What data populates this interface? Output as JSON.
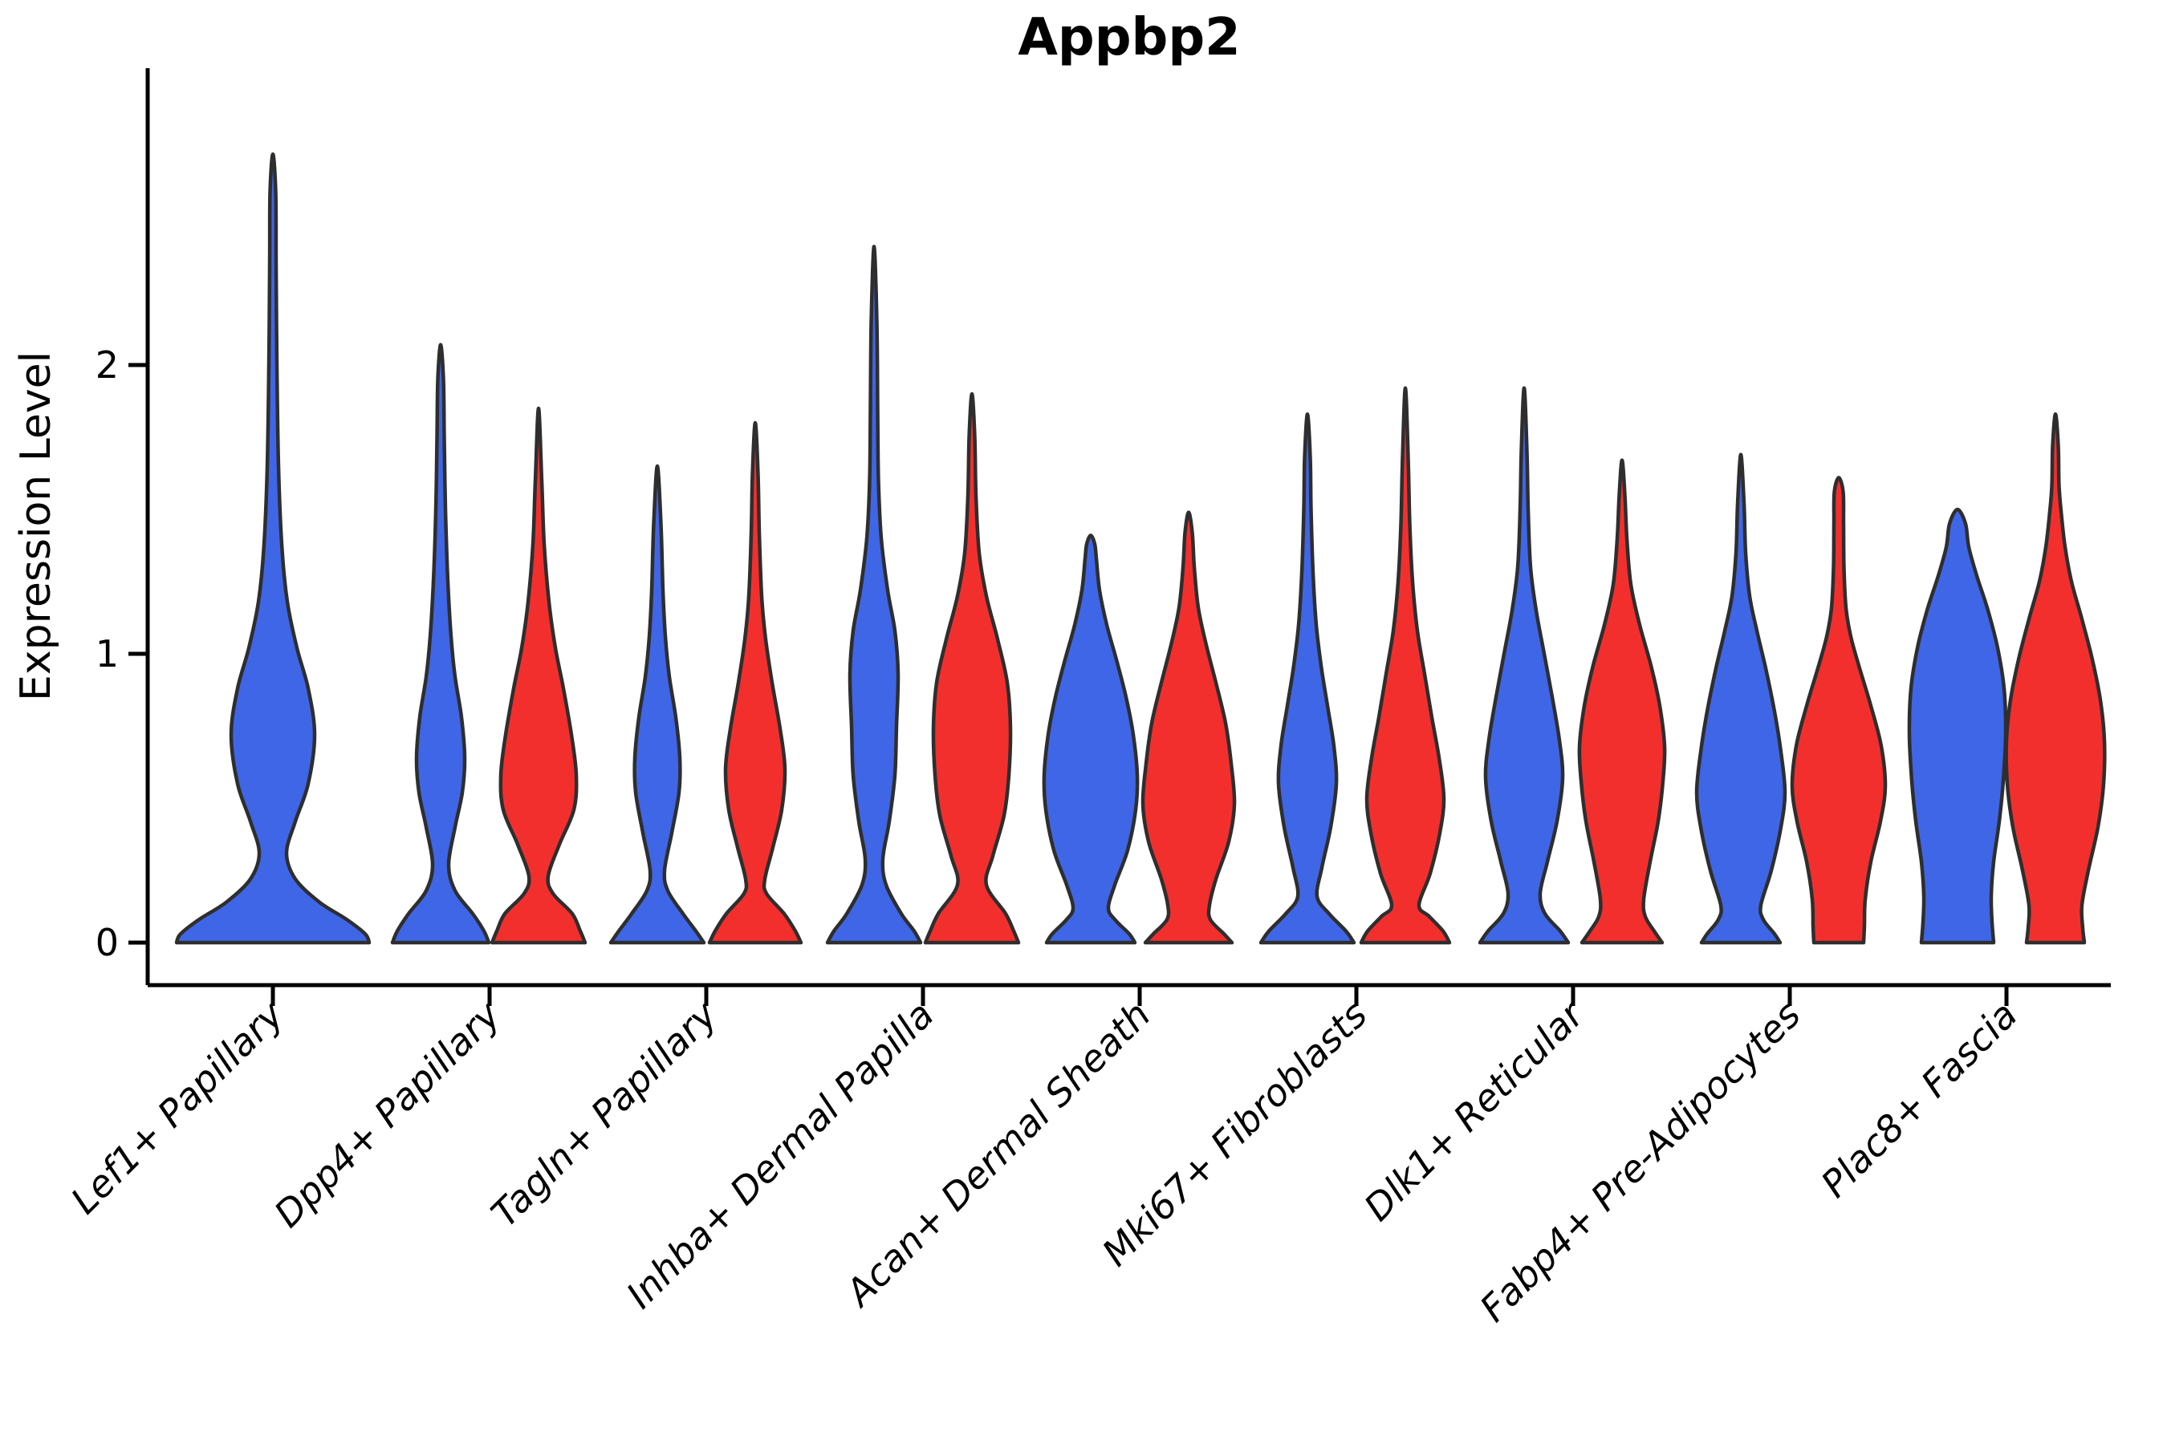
{
  "chart_data": {
    "type": "violin",
    "title": "Appbp2",
    "xlabel": "",
    "ylabel": "Expression Level",
    "yticks": [
      0,
      1,
      2
    ],
    "ylim": [
      0,
      3.0
    ],
    "grid": false,
    "legend": "none",
    "colors": {
      "group1": "#3F66E6",
      "group2": "#F32F2E",
      "outline": "#2E2E2E",
      "axis": "#000000",
      "background": "#FFFFFF"
    },
    "categories": [
      "Lef1+ Papillary",
      "Dpp4+ Papillary",
      "Tagln+ Papillary",
      "Inhba+ Dermal Papilla",
      "Acan+ Dermal Sheath",
      "Mki67+ Fibroblasts",
      "Dlk1+ Reticular",
      "Fabp4+ Pre-Adipocytes",
      "Plac8+ Fascia"
    ],
    "violins": [
      {
        "category_index": 0,
        "group": "group1",
        "max": 2.73,
        "profile": [
          [
            0,
            120
          ],
          [
            0.03,
            115
          ],
          [
            0.08,
            92
          ],
          [
            0.14,
            58
          ],
          [
            0.22,
            28
          ],
          [
            0.31,
            17
          ],
          [
            0.42,
            28
          ],
          [
            0.55,
            44
          ],
          [
            0.72,
            52
          ],
          [
            0.88,
            44
          ],
          [
            1.02,
            30
          ],
          [
            1.18,
            18
          ],
          [
            1.38,
            11
          ],
          [
            1.65,
            7
          ],
          [
            2.0,
            5
          ],
          [
            2.35,
            4
          ],
          [
            2.6,
            3.5
          ],
          [
            2.73,
            0
          ]
        ]
      },
      {
        "category_index": 1,
        "group": "group1",
        "max": 2.07,
        "profile": [
          [
            0,
            60
          ],
          [
            0.04,
            54
          ],
          [
            0.1,
            40
          ],
          [
            0.18,
            18
          ],
          [
            0.27,
            10
          ],
          [
            0.4,
            18
          ],
          [
            0.52,
            27
          ],
          [
            0.64,
            30
          ],
          [
            0.78,
            26
          ],
          [
            0.92,
            18
          ],
          [
            1.06,
            13
          ],
          [
            1.25,
            9
          ],
          [
            1.5,
            6
          ],
          [
            1.75,
            4.5
          ],
          [
            1.95,
            3.5
          ],
          [
            2.07,
            0
          ]
        ]
      },
      {
        "category_index": 1,
        "group": "group2",
        "max": 1.85,
        "profile": [
          [
            0,
            58
          ],
          [
            0.04,
            52
          ],
          [
            0.1,
            42
          ],
          [
            0.17,
            18
          ],
          [
            0.23,
            12
          ],
          [
            0.34,
            26
          ],
          [
            0.46,
            44
          ],
          [
            0.58,
            47
          ],
          [
            0.72,
            41
          ],
          [
            0.88,
            31
          ],
          [
            1.02,
            21
          ],
          [
            1.18,
            13
          ],
          [
            1.38,
            7
          ],
          [
            1.6,
            4
          ],
          [
            1.85,
            0
          ]
        ]
      },
      {
        "category_index": 2,
        "group": "group1",
        "max": 1.65,
        "profile": [
          [
            0,
            58
          ],
          [
            0.04,
            48
          ],
          [
            0.1,
            32
          ],
          [
            0.18,
            13
          ],
          [
            0.25,
            9
          ],
          [
            0.38,
            18
          ],
          [
            0.52,
            27
          ],
          [
            0.64,
            28
          ],
          [
            0.78,
            23
          ],
          [
            0.92,
            15
          ],
          [
            1.06,
            10
          ],
          [
            1.22,
            7
          ],
          [
            1.45,
            4.5
          ],
          [
            1.65,
            0
          ]
        ]
      },
      {
        "category_index": 2,
        "group": "group2",
        "max": 1.8,
        "profile": [
          [
            0,
            57
          ],
          [
            0.04,
            50
          ],
          [
            0.1,
            36
          ],
          [
            0.17,
            14
          ],
          [
            0.22,
            12
          ],
          [
            0.33,
            22
          ],
          [
            0.46,
            33
          ],
          [
            0.6,
            37
          ],
          [
            0.74,
            31
          ],
          [
            0.9,
            21
          ],
          [
            1.05,
            13
          ],
          [
            1.2,
            8
          ],
          [
            1.42,
            5
          ],
          [
            1.62,
            3.5
          ],
          [
            1.8,
            0
          ]
        ]
      },
      {
        "category_index": 3,
        "group": "group1",
        "max": 2.41,
        "profile": [
          [
            0,
            58
          ],
          [
            0.04,
            50
          ],
          [
            0.1,
            34
          ],
          [
            0.2,
            15
          ],
          [
            0.29,
            11
          ],
          [
            0.42,
            19
          ],
          [
            0.58,
            26
          ],
          [
            0.75,
            28
          ],
          [
            0.93,
            30
          ],
          [
            1.08,
            26
          ],
          [
            1.22,
            17
          ],
          [
            1.4,
            9
          ],
          [
            1.6,
            5.5
          ],
          [
            1.85,
            4.5
          ],
          [
            2.15,
            3.5
          ],
          [
            2.41,
            0
          ]
        ]
      },
      {
        "category_index": 3,
        "group": "group2",
        "max": 1.9,
        "profile": [
          [
            0,
            58
          ],
          [
            0.04,
            52
          ],
          [
            0.1,
            42
          ],
          [
            0.2,
            18
          ],
          [
            0.3,
            26
          ],
          [
            0.44,
            40
          ],
          [
            0.58,
            46
          ],
          [
            0.74,
            48
          ],
          [
            0.9,
            44
          ],
          [
            1.05,
            32
          ],
          [
            1.2,
            18
          ],
          [
            1.35,
            9
          ],
          [
            1.55,
            5
          ],
          [
            1.75,
            3.5
          ],
          [
            1.9,
            0
          ]
        ]
      },
      {
        "category_index": 4,
        "group": "group1",
        "max": 1.41,
        "profile": [
          [
            0,
            55
          ],
          [
            0.03,
            48
          ],
          [
            0.08,
            30
          ],
          [
            0.12,
            22
          ],
          [
            0.2,
            30
          ],
          [
            0.32,
            46
          ],
          [
            0.46,
            56
          ],
          [
            0.58,
            58
          ],
          [
            0.72,
            53
          ],
          [
            0.85,
            44
          ],
          [
            0.98,
            32
          ],
          [
            1.1,
            20
          ],
          [
            1.22,
            11
          ],
          [
            1.33,
            7
          ],
          [
            1.38,
            5
          ],
          [
            1.41,
            0
          ]
        ]
      },
      {
        "category_index": 4,
        "group": "group2",
        "max": 1.49,
        "profile": [
          [
            0,
            54
          ],
          [
            0.03,
            44
          ],
          [
            0.08,
            27
          ],
          [
            0.13,
            26
          ],
          [
            0.22,
            34
          ],
          [
            0.35,
            50
          ],
          [
            0.48,
            57
          ],
          [
            0.62,
            53
          ],
          [
            0.76,
            46
          ],
          [
            0.9,
            34
          ],
          [
            1.03,
            22
          ],
          [
            1.16,
            12
          ],
          [
            1.3,
            7
          ],
          [
            1.42,
            4.5
          ],
          [
            1.49,
            0
          ]
        ]
      },
      {
        "category_index": 5,
        "group": "group1",
        "max": 1.83,
        "profile": [
          [
            0,
            58
          ],
          [
            0.04,
            48
          ],
          [
            0.1,
            27
          ],
          [
            0.16,
            12
          ],
          [
            0.26,
            18
          ],
          [
            0.4,
            29
          ],
          [
            0.55,
            36
          ],
          [
            0.68,
            33
          ],
          [
            0.82,
            25
          ],
          [
            0.96,
            17
          ],
          [
            1.1,
            11
          ],
          [
            1.28,
            7
          ],
          [
            1.5,
            4.5
          ],
          [
            1.68,
            3.5
          ],
          [
            1.83,
            0
          ]
        ]
      },
      {
        "category_index": 5,
        "group": "group2",
        "max": 1.92,
        "profile": [
          [
            0,
            55
          ],
          [
            0.04,
            47
          ],
          [
            0.09,
            30
          ],
          [
            0.13,
            17
          ],
          [
            0.24,
            31
          ],
          [
            0.38,
            43
          ],
          [
            0.5,
            48
          ],
          [
            0.64,
            42
          ],
          [
            0.78,
            33
          ],
          [
            0.93,
            24
          ],
          [
            1.08,
            15
          ],
          [
            1.25,
            9
          ],
          [
            1.45,
            5.5
          ],
          [
            1.68,
            3.5
          ],
          [
            1.92,
            0
          ]
        ]
      },
      {
        "category_index": 6,
        "group": "group1",
        "max": 1.92,
        "profile": [
          [
            0,
            55
          ],
          [
            0.04,
            45
          ],
          [
            0.1,
            26
          ],
          [
            0.17,
            20
          ],
          [
            0.28,
            29
          ],
          [
            0.42,
            41
          ],
          [
            0.57,
            48
          ],
          [
            0.7,
            44
          ],
          [
            0.85,
            35
          ],
          [
            1.0,
            25
          ],
          [
            1.15,
            15
          ],
          [
            1.3,
            8
          ],
          [
            1.5,
            5
          ],
          [
            1.7,
            3.5
          ],
          [
            1.92,
            0
          ]
        ]
      },
      {
        "category_index": 6,
        "group": "group2",
        "max": 1.67,
        "profile": [
          [
            0,
            50
          ],
          [
            0.04,
            40
          ],
          [
            0.09,
            29
          ],
          [
            0.15,
            27
          ],
          [
            0.28,
            35
          ],
          [
            0.42,
            45
          ],
          [
            0.56,
            51
          ],
          [
            0.68,
            53
          ],
          [
            0.82,
            47
          ],
          [
            0.96,
            36
          ],
          [
            1.1,
            22
          ],
          [
            1.24,
            11
          ],
          [
            1.4,
            6
          ],
          [
            1.55,
            3.5
          ],
          [
            1.67,
            0
          ]
        ]
      },
      {
        "category_index": 7,
        "group": "group1",
        "max": 1.69,
        "profile": [
          [
            0,
            49
          ],
          [
            0.03,
            42
          ],
          [
            0.08,
            28
          ],
          [
            0.13,
            25
          ],
          [
            0.25,
            38
          ],
          [
            0.4,
            50
          ],
          [
            0.52,
            55
          ],
          [
            0.66,
            50
          ],
          [
            0.8,
            42
          ],
          [
            0.95,
            31
          ],
          [
            1.08,
            20
          ],
          [
            1.2,
            11
          ],
          [
            1.35,
            6
          ],
          [
            1.52,
            4
          ],
          [
            1.69,
            0
          ]
        ]
      },
      {
        "category_index": 7,
        "group": "group2",
        "max": 1.61,
        "profile": [
          [
            0,
            31
          ],
          [
            0.06,
            32
          ],
          [
            0.15,
            33
          ],
          [
            0.28,
            40
          ],
          [
            0.42,
            52
          ],
          [
            0.54,
            58
          ],
          [
            0.68,
            53
          ],
          [
            0.82,
            40
          ],
          [
            0.95,
            26
          ],
          [
            1.06,
            15
          ],
          [
            1.16,
            9
          ],
          [
            1.3,
            6.5
          ],
          [
            1.45,
            6
          ],
          [
            1.56,
            5.5
          ],
          [
            1.61,
            0
          ]
        ]
      },
      {
        "category_index": 8,
        "group": "group1",
        "max": 1.5,
        "profile": [
          [
            0,
            45
          ],
          [
            0.07,
            43
          ],
          [
            0.16,
            42
          ],
          [
            0.28,
            45
          ],
          [
            0.42,
            52
          ],
          [
            0.56,
            57
          ],
          [
            0.72,
            60
          ],
          [
            0.88,
            58
          ],
          [
            1.02,
            50
          ],
          [
            1.15,
            38
          ],
          [
            1.27,
            24
          ],
          [
            1.37,
            14
          ],
          [
            1.45,
            10
          ],
          [
            1.5,
            0
          ]
        ]
      },
      {
        "category_index": 8,
        "group": "group2",
        "max": 1.83,
        "profile": [
          [
            0,
            36
          ],
          [
            0.05,
            34
          ],
          [
            0.13,
            33
          ],
          [
            0.25,
            41
          ],
          [
            0.4,
            53
          ],
          [
            0.55,
            60
          ],
          [
            0.7,
            61
          ],
          [
            0.84,
            56
          ],
          [
            0.98,
            46
          ],
          [
            1.12,
            33
          ],
          [
            1.25,
            20
          ],
          [
            1.37,
            12
          ],
          [
            1.48,
            7.5
          ],
          [
            1.58,
            4.5
          ],
          [
            1.72,
            3.5
          ],
          [
            1.83,
            0
          ]
        ]
      }
    ]
  }
}
